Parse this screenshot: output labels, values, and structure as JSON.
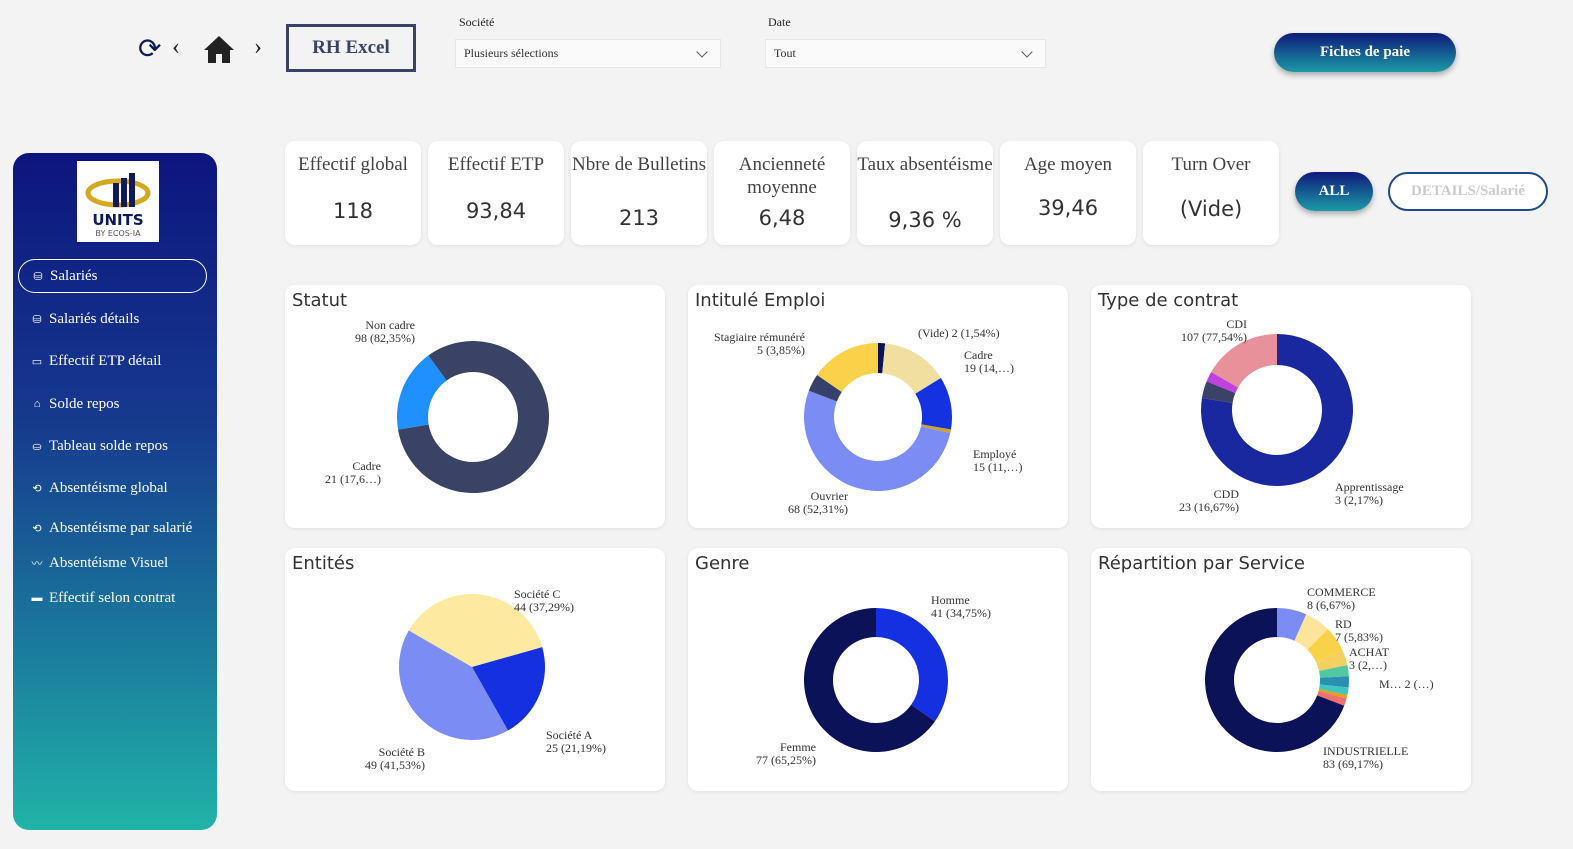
{
  "header": {
    "title": "RH Excel",
    "societe_label": "Société",
    "societe_value": "Plusieurs sélections",
    "date_label": "Date",
    "date_value": "Tout",
    "payslip_button": "Fiches de paie"
  },
  "logo": {
    "text": "UNITS",
    "sub": "BY ECOS-IA"
  },
  "sidebar": {
    "items": [
      {
        "label": "Salariés",
        "icon": "users-db-icon"
      },
      {
        "label": "Salariés détails",
        "icon": "users-db-icon"
      },
      {
        "label": "Effectif ETP détail",
        "icon": "folder-icon"
      },
      {
        "label": "Solde repos",
        "icon": "bag-icon"
      },
      {
        "label": "Tableau solde repos",
        "icon": "database-icon"
      },
      {
        "label": "Absentéisme global",
        "icon": "cycle-icon"
      },
      {
        "label": "Absentéisme par salarié",
        "icon": "cycle-icon"
      },
      {
        "label": "Absentéisme Visuel",
        "icon": "trend-icon"
      },
      {
        "label": "Effectif selon contrat",
        "icon": "card-icon"
      }
    ]
  },
  "kpis": [
    {
      "title": "Effectif global",
      "value": "118"
    },
    {
      "title": "Effectif ETP",
      "value": "93,84"
    },
    {
      "title": "Nbre de Bulletins",
      "value": "213"
    },
    {
      "title": "Ancienneté moyenne",
      "value": "6,48"
    },
    {
      "title": "Taux absentéisme",
      "value": "9,36 %"
    },
    {
      "title": "Age moyen",
      "value": "39,46"
    },
    {
      "title": "Turn Over",
      "value": "(Vide)"
    }
  ],
  "filters": {
    "all": "ALL",
    "details": "DETAILS/Salarié"
  },
  "chart_data": [
    {
      "type": "donut",
      "title": "Statut",
      "slices": [
        {
          "label": "Non cadre",
          "value": 98,
          "text": "98 (82,35%)",
          "color": "#3a4266"
        },
        {
          "label": "Cadre",
          "value": 21,
          "text": "21 (17,6…)",
          "color": "#1e90ff"
        }
      ]
    },
    {
      "type": "donut",
      "title": "Intitulé Emploi",
      "slices": [
        {
          "label": "(Vide)",
          "value": 2,
          "text": "2 (1,54%)",
          "color": "#0b1257"
        },
        {
          "label": "Cadre",
          "value": 19,
          "text": "19 (14,…)",
          "color": "#efe09f"
        },
        {
          "label": "Employé",
          "value": 15,
          "text": "15 (11,…)",
          "color": "#1432e0"
        },
        {
          "label": "",
          "value": 1,
          "color": "#d4a020"
        },
        {
          "label": "Ouvrier",
          "value": 68,
          "text": "68 (52,31%)",
          "color": "#7b8cf5"
        },
        {
          "label": "Stagiaire rémunéré",
          "value": 5,
          "text": "5 (3,85%)",
          "color": "#36406b"
        },
        {
          "label": "",
          "value": 20,
          "color": "#f9d24a"
        }
      ]
    },
    {
      "type": "donut",
      "title": "Type de contrat",
      "slices": [
        {
          "label": "CDI",
          "value": 107,
          "text": "107 (77,54%)",
          "color": "#1a28a0"
        },
        {
          "label": "",
          "value": 5,
          "color": "#3a4266"
        },
        {
          "label": "Apprentissage",
          "value": 3,
          "text": "3 (2,17%)",
          "color": "#c040e0"
        },
        {
          "label": "CDD",
          "value": 23,
          "text": "23 (16,67%)",
          "color": "#e8919a"
        }
      ]
    },
    {
      "type": "pie",
      "title": "Entités",
      "slices": [
        {
          "label": "Société C",
          "value": 44,
          "text": "44 (37,29%)",
          "color": "#fde9a0"
        },
        {
          "label": "Société A",
          "value": 25,
          "text": "25 (21,19%)",
          "color": "#1530e0"
        },
        {
          "label": "Société B",
          "value": 49,
          "text": "49 (41,53%)",
          "color": "#7b8cf5"
        }
      ]
    },
    {
      "type": "donut",
      "title": "Genre",
      "slices": [
        {
          "label": "Homme",
          "value": 41,
          "text": "41 (34,75%)",
          "color": "#1530e0"
        },
        {
          "label": "Femme",
          "value": 77,
          "text": "77 (65,25%)",
          "color": "#0b1257"
        }
      ]
    },
    {
      "type": "donut",
      "title": "Répartition par Service",
      "slices": [
        {
          "label": "COMMERCE",
          "value": 8,
          "text": "8 (6,67%)",
          "color": "#7b8cf5"
        },
        {
          "label": "",
          "value": 7,
          "color": "#fde49a"
        },
        {
          "label": "RD",
          "value": 7,
          "text": "7 (5,83%)",
          "color": "#f9d24a"
        },
        {
          "label": "",
          "value": 4,
          "color": "#f5d060"
        },
        {
          "label": "ACHAT",
          "value": 3,
          "text": "3 (2,…)",
          "color": "#4fc9a0"
        },
        {
          "label": "",
          "value": 3,
          "color": "#2a8fb0"
        },
        {
          "label": "M…",
          "value": 2,
          "text": "2 (…)",
          "color": "#3cc8c0"
        },
        {
          "label": "",
          "value": 1,
          "color": "#e0a020"
        },
        {
          "label": "",
          "value": 2,
          "color": "#f07070"
        },
        {
          "label": "INDUSTRIELLE",
          "value": 83,
          "text": "83 (69,17%)",
          "color": "#0b1257"
        }
      ]
    }
  ]
}
